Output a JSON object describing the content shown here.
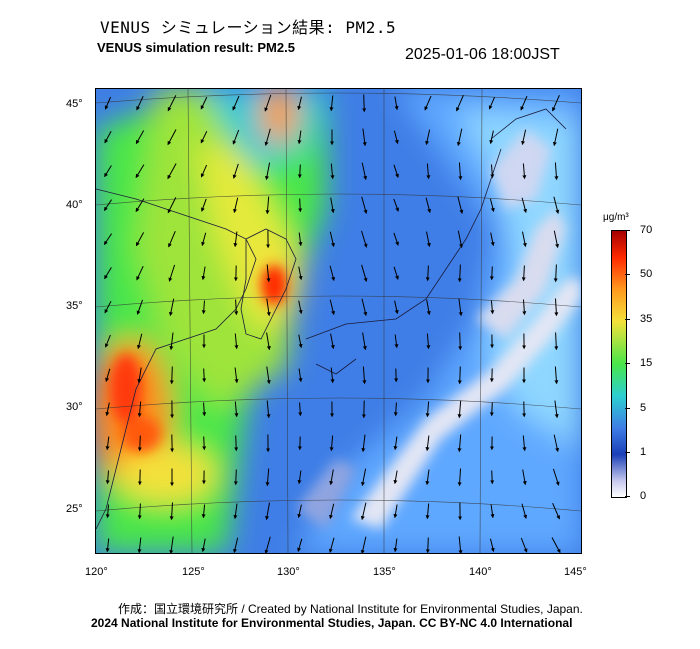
{
  "header": {
    "title_jp": "VENUS シミュレーション結果: PM2.5",
    "title_en": "VENUS simulation result: PM2.5",
    "timestamp": "2025-01-06 18:00JST"
  },
  "map": {
    "lat_labels": [
      "45°",
      "40°",
      "35°",
      "30°",
      "25°"
    ],
    "lon_labels": [
      "120°",
      "125°",
      "130°",
      "135°",
      "140°",
      "145°"
    ],
    "wind_arrows": "field",
    "colors": {
      "ocean_base": "#3f7ee6",
      "land_low": "#8fd7ff",
      "clean_air": "#d9dcef",
      "hotspot": "#ff2a00",
      "mid_green": "#49e64a",
      "yellow": "#f4e13a",
      "orange": "#ff9a1f"
    }
  },
  "colorbar": {
    "unit": "μg/m³",
    "ticks": [
      "70",
      "50",
      "35",
      "15",
      "5",
      "1",
      "0"
    ]
  },
  "footer": {
    "credit_line": "作成：国立環境研究所 / Created by National Institute for Environmental Studies, Japan.",
    "license_line": "2024 National Institute for Environmental Studies, Japan. CC BY-NC 4.0 International"
  }
}
